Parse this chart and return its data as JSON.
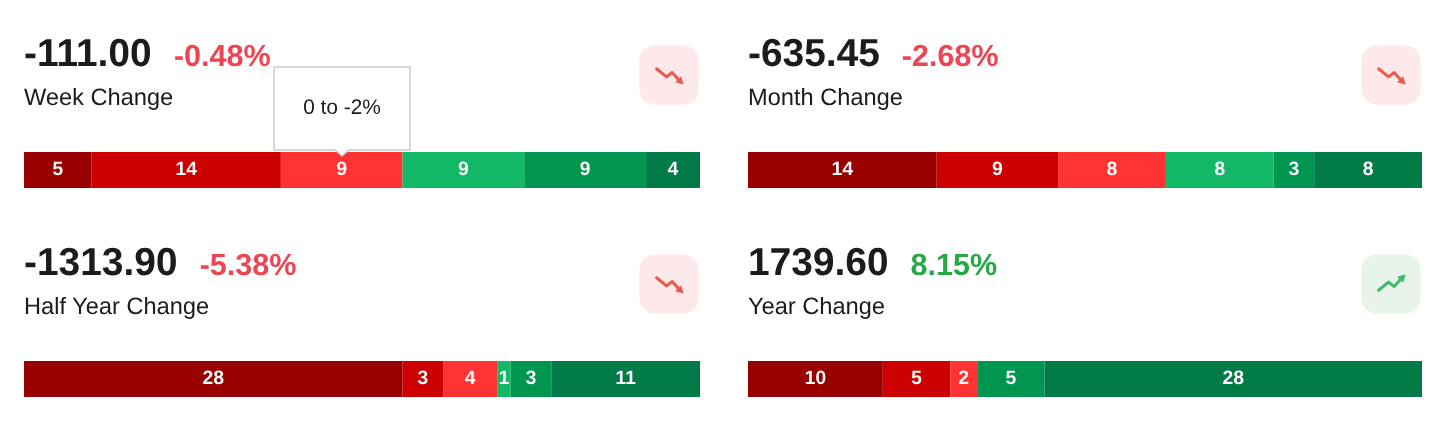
{
  "chart_data": [
    {
      "type": "bar",
      "orientation": "horizontal",
      "stacked": true,
      "title": "-111.00",
      "subtitle": "Week Change",
      "annotations": [
        "-0.48%",
        "0 to -2%"
      ],
      "categories": [
        null
      ],
      "xlim": [
        0,
        50
      ],
      "tick_labels": false,
      "data_labels": true,
      "series": [
        {
          "color": "#990000",
          "values": [
            5
          ]
        },
        {
          "color": "#cc0000",
          "values": [
            14
          ]
        },
        {
          "color": "#ff3333",
          "values": [
            9
          ]
        },
        {
          "color": "#13b867",
          "values": [
            9
          ]
        },
        {
          "color": "#009650",
          "values": [
            9
          ]
        },
        {
          "color": "#007a46",
          "values": [
            4
          ]
        }
      ]
    },
    {
      "type": "bar",
      "orientation": "horizontal",
      "stacked": true,
      "title": "-635.45",
      "subtitle": "Month Change",
      "annotations": [
        "-2.68%"
      ],
      "categories": [
        null
      ],
      "xlim": [
        0,
        50
      ],
      "tick_labels": false,
      "data_labels": true,
      "series": [
        {
          "color": "#990000",
          "values": [
            14
          ]
        },
        {
          "color": "#cc0000",
          "values": [
            9
          ]
        },
        {
          "color": "#ff3333",
          "values": [
            8
          ]
        },
        {
          "color": "#13b867",
          "values": [
            8
          ]
        },
        {
          "color": "#009650",
          "values": [
            3
          ]
        },
        {
          "color": "#007a46",
          "values": [
            8
          ]
        }
      ]
    },
    {
      "type": "bar",
      "orientation": "horizontal",
      "stacked": true,
      "title": "-1313.90",
      "subtitle": "Half Year Change",
      "annotations": [
        "-5.38%"
      ],
      "categories": [
        null
      ],
      "xlim": [
        0,
        50
      ],
      "tick_labels": false,
      "data_labels": true,
      "series": [
        {
          "color": "#990000",
          "values": [
            28
          ]
        },
        {
          "color": "#cc0000",
          "values": [
            3
          ]
        },
        {
          "color": "#ff3333",
          "values": [
            4
          ]
        },
        {
          "color": "#13b867",
          "values": [
            1
          ]
        },
        {
          "color": "#009650",
          "values": [
            3
          ]
        },
        {
          "color": "#007a46",
          "values": [
            11
          ]
        }
      ]
    },
    {
      "type": "bar",
      "orientation": "horizontal",
      "stacked": true,
      "title": "1739.60",
      "subtitle": "Year Change",
      "annotations": [
        "8.15%"
      ],
      "categories": [
        null
      ],
      "xlim": [
        0,
        50
      ],
      "tick_labels": false,
      "data_labels": true,
      "series": [
        {
          "color": "#990000",
          "values": [
            10
          ]
        },
        {
          "color": "#cc0000",
          "values": [
            5
          ]
        },
        {
          "color": "#ff3333",
          "values": [
            2
          ]
        },
        {
          "color": "#009650",
          "values": [
            5
          ]
        },
        {
          "color": "#007a46",
          "values": [
            28
          ]
        }
      ]
    }
  ]
}
